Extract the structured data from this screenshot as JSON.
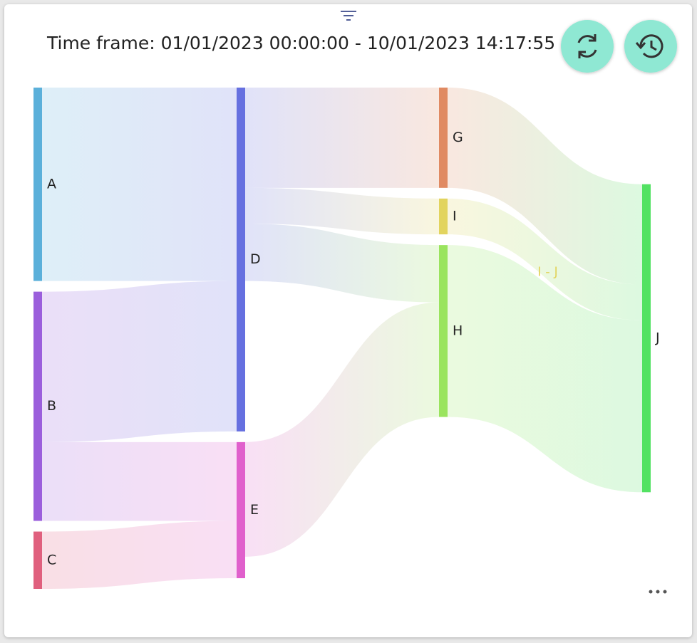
{
  "chart_data": {
    "type": "sankey",
    "title": "Time frame: 01/01/2023 00:00:00 - 10/01/2023 14:17:55",
    "nodes": [
      {
        "name": "A",
        "color": "#5bb0da",
        "column": 0
      },
      {
        "name": "B",
        "color": "#9b5fdc",
        "column": 0
      },
      {
        "name": "C",
        "color": "#e0607e",
        "column": 0
      },
      {
        "name": "D",
        "color": "#6670e0",
        "column": 1
      },
      {
        "name": "E",
        "color": "#e060cc",
        "column": 1
      },
      {
        "name": "G",
        "color": "#e08a62",
        "column": 2
      },
      {
        "name": "I",
        "color": "#e2d45e",
        "column": 2
      },
      {
        "name": "H",
        "color": "#9ae45e",
        "column": 2
      },
      {
        "name": "J",
        "color": "#52e262",
        "column": 3
      }
    ],
    "links": [
      {
        "source": "A",
        "target": "D",
        "value": 27
      },
      {
        "source": "B",
        "target": "D",
        "value": 21
      },
      {
        "source": "B",
        "target": "E",
        "value": 11
      },
      {
        "source": "C",
        "target": "E",
        "value": 8
      },
      {
        "source": "D",
        "target": "G",
        "value": 14
      },
      {
        "source": "D",
        "target": "I",
        "value": 5
      },
      {
        "source": "D",
        "target": "H",
        "value": 8
      },
      {
        "source": "E",
        "target": "H",
        "value": 16
      },
      {
        "source": "G",
        "target": "J",
        "value": 14
      },
      {
        "source": "I",
        "target": "J",
        "value": 5,
        "label": "I - J"
      },
      {
        "source": "H",
        "target": "J",
        "value": 24
      }
    ]
  }
}
